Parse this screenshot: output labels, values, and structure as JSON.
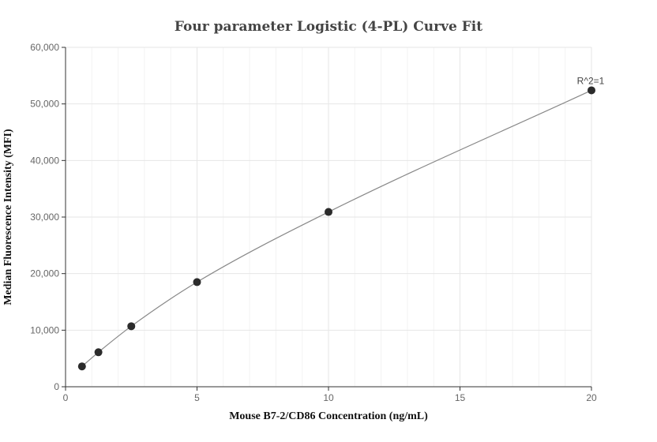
{
  "chart_data": {
    "type": "scatter",
    "title": "Four parameter Logistic (4-PL) Curve Fit",
    "xlabel": "Mouse B7-2/CD86 Concentration (ng/mL)",
    "ylabel": "Median Fluorescence Intensity (MFI)",
    "xlim": [
      0,
      20
    ],
    "ylim": [
      0,
      60000
    ],
    "x_ticks": [
      0,
      5,
      10,
      15,
      20
    ],
    "x_tick_labels": [
      "0",
      "5",
      "10",
      "15",
      "20"
    ],
    "y_ticks": [
      0,
      10000,
      20000,
      30000,
      40000,
      50000,
      60000
    ],
    "y_tick_labels": [
      "0",
      "10,000",
      "20,000",
      "30,000",
      "40,000",
      "50,000",
      "60,000"
    ],
    "grid": true,
    "series": [
      {
        "points": [
          {
            "x": 0.625,
            "y": 3600
          },
          {
            "x": 1.25,
            "y": 6100
          },
          {
            "x": 2.5,
            "y": 10700
          },
          {
            "x": 5,
            "y": 18500
          },
          {
            "x": 10,
            "y": 30900
          },
          {
            "x": 20,
            "y": 52400
          }
        ],
        "marker_color": "#2b2b2b"
      }
    ],
    "fit_curve_color": "#888888",
    "annotation": "R^2=1"
  }
}
